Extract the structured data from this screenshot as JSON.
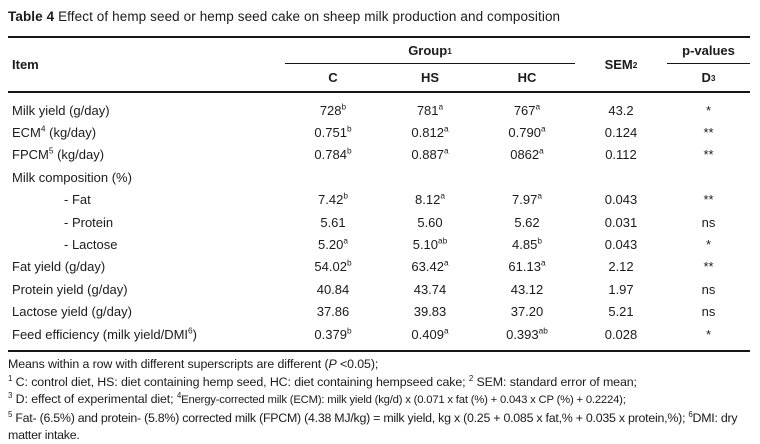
{
  "title": {
    "bold": "Table 4",
    "rest": " Effect of hemp seed or hemp seed cake on sheep milk production and composition"
  },
  "table": {
    "header": {
      "item": "Item",
      "group": "Group",
      "group_sup": "1",
      "c": "C",
      "hs": "HS",
      "hc": "HC",
      "sem": "SEM",
      "sem_sup": "2",
      "pvalues": "p-values",
      "d": "D",
      "d_sup": "3"
    },
    "rows": [
      {
        "item": "Milk yield (g/day)",
        "c": "728",
        "c_s": "b",
        "hs": "781",
        "hs_s": "a",
        "hc": "767",
        "hc_s": "a",
        "sem": "43.2",
        "p": "*"
      },
      {
        "item": "ECM",
        "item_s": "4",
        "item_post": " (kg/day)",
        "c": "0.751",
        "c_s": "b",
        "hs": "0.812",
        "hs_s": "a",
        "hc": "0.790",
        "hc_s": "a",
        "sem": "0.124",
        "p": "**"
      },
      {
        "item": "FPCM",
        "item_s": "5",
        "item_post": " (kg/day)",
        "c": "0.784",
        "c_s": "b",
        "hs": "0.887",
        "hs_s": "a",
        "hc": "0862",
        "hc_s": "a",
        "sem": "0.112",
        "p": "**"
      },
      {
        "item": "Milk composition (%)"
      },
      {
        "item": "- Fat",
        "c": "7.42",
        "c_s": "b",
        "hs": "8.12",
        "hs_s": "a",
        "hc": "7.97",
        "hc_s": "a",
        "sem": "0.043",
        "p": "**"
      },
      {
        "item": "- Protein",
        "c": "5.61",
        "hs": "5.60",
        "hc": "5.62",
        "sem": "0.031",
        "p": "ns"
      },
      {
        "item": "- Lactose",
        "c": "5.20",
        "c_s": "a",
        "hs": "5.10",
        "hs_s": "ab",
        "hc": "4.85",
        "hc_s": "b",
        "sem": "0.043",
        "p": "*"
      },
      {
        "item": "Fat yield (g/day)",
        "c": "54.02",
        "c_s": "b",
        "hs": "63.42",
        "hs_s": "a",
        "hc": "61.13",
        "hc_s": "a",
        "sem": "2.12",
        "p": "**"
      },
      {
        "item": "Protein yield (g/day)",
        "c": "40.84",
        "hs": "43.74",
        "hc": "43.12",
        "sem": "1.97",
        "p": "ns"
      },
      {
        "item": "Lactose yield (g/day)",
        "c": "37.86",
        "hs": "39.83",
        "hc": "37.20",
        "sem": "5.21",
        "p": "ns"
      },
      {
        "item": "Feed efficiency (milk yield/DMI",
        "item_s": "6",
        "item_post": ")",
        "c": "0.379",
        "c_s": "b",
        "hs": "0.409",
        "hs_s": "a",
        "hc": "0.393",
        "hc_s": "ab",
        "sem": "0.028",
        "p": "*"
      }
    ]
  },
  "footnotes": {
    "line1": {
      "a": "Means within a row with different superscripts are different (",
      "p": "P",
      "b": " <0.05);"
    },
    "line2": {
      "s1": "1",
      "a": " C: control diet, HS: diet containing hemp seed, HC: diet containing hempseed cake; ",
      "s2": "2",
      "b": " SEM: standard error of mean;"
    },
    "line3": {
      "s1": "3",
      "a": " D: effect of experimental diet; ",
      "s2": "4",
      "b": "Energy-corrected milk (ECM): milk yield (kg/d) x (0.071 x fat (%) + 0.043 x CP (%) + 0.2224);"
    },
    "line4": {
      "s1": "5",
      "a": " Fat- (6.5%) and protein- (5.8%) corrected milk (FPCM) (4.38 MJ/kg) = milk yield, kg x (0.25 + 0.085 x fat,% + 0.035 x protein,%); ",
      "s2": "6",
      "b": "DMI: dry matter intake."
    }
  }
}
